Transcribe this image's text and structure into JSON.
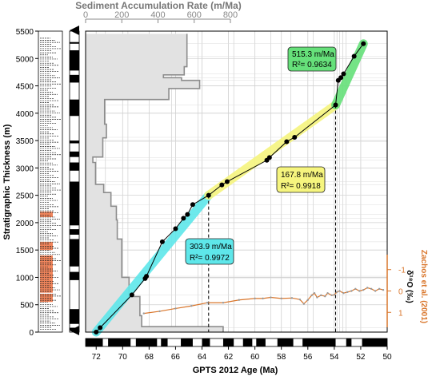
{
  "chart_data": {
    "type": "line",
    "axes": {
      "top": {
        "label": "Sediment Accumulation Rate (m/Ma)",
        "range": [
          0,
          800
        ],
        "ticks": [
          "0",
          "200",
          "400",
          "600",
          "800"
        ]
      },
      "bottom": {
        "label": "GPTS 2012  Age (Ma)",
        "range": [
          72.8,
          50
        ],
        "ticks": [
          "72",
          "70",
          "68",
          "66",
          "64",
          "62",
          "60",
          "58",
          "56",
          "54",
          "52",
          "50"
        ]
      },
      "left": {
        "label": "Stratigraphic Thickness (m)",
        "range": [
          0,
          5500
        ],
        "ticks": [
          "0",
          "500",
          "1000",
          "1500",
          "2000",
          "2500",
          "3000",
          "3500",
          "4000",
          "4500",
          "5000",
          "5500"
        ]
      },
      "right": {
        "label": "δ¹⁸O (‰)",
        "label2": "Zachos et al. (2001)",
        "range": [
          1.7,
          -1.7
        ],
        "ticks": [
          "-1",
          "0",
          "1"
        ]
      }
    },
    "series": [
      {
        "name": "age_depth_tiepoints",
        "x": [
          72.0,
          71.7,
          69.3,
          68.3,
          68.2,
          67.0,
          66.0,
          65.4,
          65.1,
          64.7,
          63.5,
          62.5,
          62.1,
          59.1,
          58.9,
          57.6,
          57.0,
          53.9,
          53.7,
          53.5,
          53.3,
          52.5,
          51.8
        ],
        "y": [
          0,
          80,
          680,
          980,
          1020,
          1650,
          1890,
          2080,
          2150,
          2330,
          2500,
          2690,
          2750,
          3140,
          3190,
          3480,
          3560,
          4150,
          4600,
          4650,
          4720,
          5040,
          5270
        ]
      },
      {
        "name": "accumulation_rate",
        "steps": [
          [
            0,
            100,
            760
          ],
          [
            100,
            300,
            310
          ],
          [
            300,
            650,
            300
          ],
          [
            650,
            1000,
            240
          ],
          [
            1000,
            1250,
            200
          ],
          [
            1250,
            1700,
            200
          ],
          [
            1700,
            2050,
            175
          ],
          [
            2050,
            2300,
            170
          ],
          [
            2300,
            2550,
            140
          ],
          [
            2550,
            2700,
            100
          ],
          [
            2700,
            3100,
            55
          ],
          [
            3100,
            3200,
            40
          ],
          [
            3200,
            3550,
            95
          ],
          [
            3550,
            3800,
            115
          ],
          [
            3800,
            4250,
            105
          ],
          [
            4250,
            4450,
            460
          ],
          [
            4450,
            4600,
            630
          ],
          [
            4600,
            4650,
            530
          ],
          [
            4650,
            4700,
            430
          ],
          [
            4700,
            4850,
            545
          ],
          [
            4850,
            5150,
            560
          ],
          [
            5150,
            5450,
            560
          ]
        ]
      },
      {
        "name": "Zachos et al. (2001)",
        "x": [
          58.8,
          58.0,
          57.2,
          56.6,
          56.3,
          56.0,
          55.7,
          55.5,
          55.3,
          55.0,
          54.7,
          54.5,
          54.2,
          54.0,
          53.8,
          53.6,
          53.3,
          53.0,
          52.7,
          52.4,
          52.1,
          51.8,
          51.5,
          51.2,
          50.9,
          50.6,
          50.3
        ],
        "y": [
          0.3,
          0.35,
          0.33,
          0.4,
          0.6,
          0.42,
          0.2,
          0.1,
          0.3,
          0.2,
          0.25,
          0.1,
          0.2,
          0.18,
          0.05,
          0.0,
          0.1,
          0.05,
          0.0,
          -0.1,
          0.0,
          -0.05,
          -0.15,
          -0.1,
          0.0,
          -0.1,
          -0.05
        ],
        "x_early": [
          68.4,
          67.2,
          66.0,
          64.8,
          63.6,
          62.4,
          61.2,
          60.0,
          59.4
        ],
        "y_early": [
          1.05,
          0.95,
          0.82,
          0.7,
          0.55,
          0.55,
          0.42,
          0.35,
          0.35
        ]
      }
    ],
    "regressions": [
      {
        "rate": "303.9 m/Ma",
        "r2": "R²= 0.9972",
        "from": [
          72.0,
          0
        ],
        "to": [
          63.5,
          2500
        ]
      },
      {
        "rate": "167.8 m/Ma",
        "r2": "R²= 0.9918",
        "from": [
          63.5,
          2500
        ],
        "to": [
          53.9,
          4150
        ]
      },
      {
        "rate": "515.3 m/Ma",
        "r2": "R²= 0.9634",
        "from": [
          53.9,
          4150
        ],
        "to": [
          51.8,
          5270
        ]
      }
    ],
    "colors": {
      "cyan": "#5ee7ea",
      "yellow": "#f6f57e",
      "green": "#66e07a",
      "orange": "#d9752a",
      "rate_fill": "#e2e2e2",
      "rate_line": "#8c8c8c"
    }
  }
}
